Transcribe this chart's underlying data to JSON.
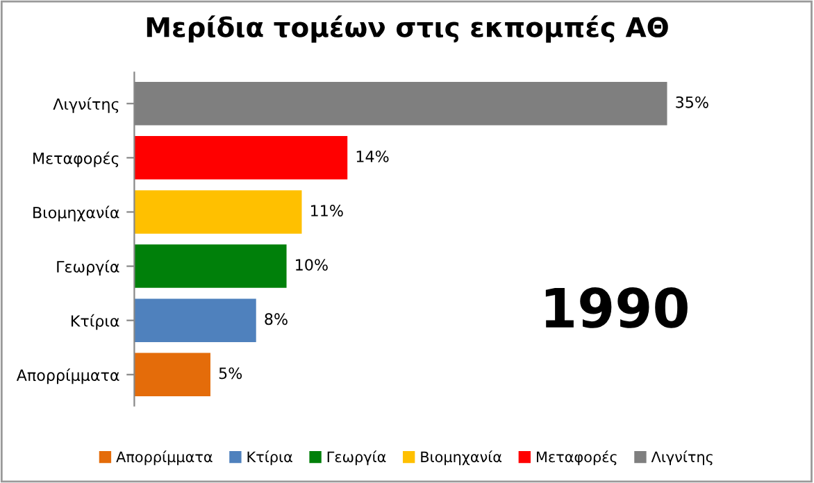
{
  "chart_data": {
    "type": "bar",
    "orientation": "horizontal",
    "stacked": true,
    "title": "Μερίδια τομέων στις εκπομπές ΑΘ",
    "categories": [
      "Λιγνίτης",
      "Μεταφορές",
      "Βιομηχανία",
      "Γεωργία",
      "Κτίρια",
      "Απορρίμματα"
    ],
    "series": [
      {
        "name": "Απορρίμματα",
        "color": "#e46c0a",
        "values": [
          null,
          null,
          null,
          null,
          null,
          5
        ],
        "value_labels": [
          null,
          null,
          null,
          null,
          null,
          "5%"
        ]
      },
      {
        "name": "Κτίρια",
        "color": "#4f81bd",
        "values": [
          null,
          null,
          null,
          null,
          8,
          null
        ],
        "value_labels": [
          null,
          null,
          null,
          null,
          "8%",
          null
        ]
      },
      {
        "name": "Γεωργία",
        "color": "#00800a",
        "values": [
          null,
          null,
          null,
          10,
          null,
          null
        ],
        "value_labels": [
          null,
          null,
          null,
          "10%",
          null,
          null
        ]
      },
      {
        "name": "Βιομηχανία",
        "color": "#ffc000",
        "values": [
          null,
          null,
          11,
          null,
          null,
          null
        ],
        "value_labels": [
          null,
          null,
          "11%",
          null,
          null,
          null
        ]
      },
      {
        "name": "Μεταφορές",
        "color": "#ff0000",
        "values": [
          null,
          14,
          null,
          null,
          null,
          null
        ],
        "value_labels": [
          null,
          "14%",
          null,
          null,
          null,
          null
        ]
      },
      {
        "name": "Λιγνίτης",
        "color": "#7f7f7f",
        "values": [
          35,
          null,
          null,
          null,
          null,
          null
        ],
        "value_labels": [
          "35%",
          null,
          null,
          null,
          null,
          null
        ]
      }
    ],
    "annotations": [
      "1990"
    ],
    "legend": "bottom"
  }
}
